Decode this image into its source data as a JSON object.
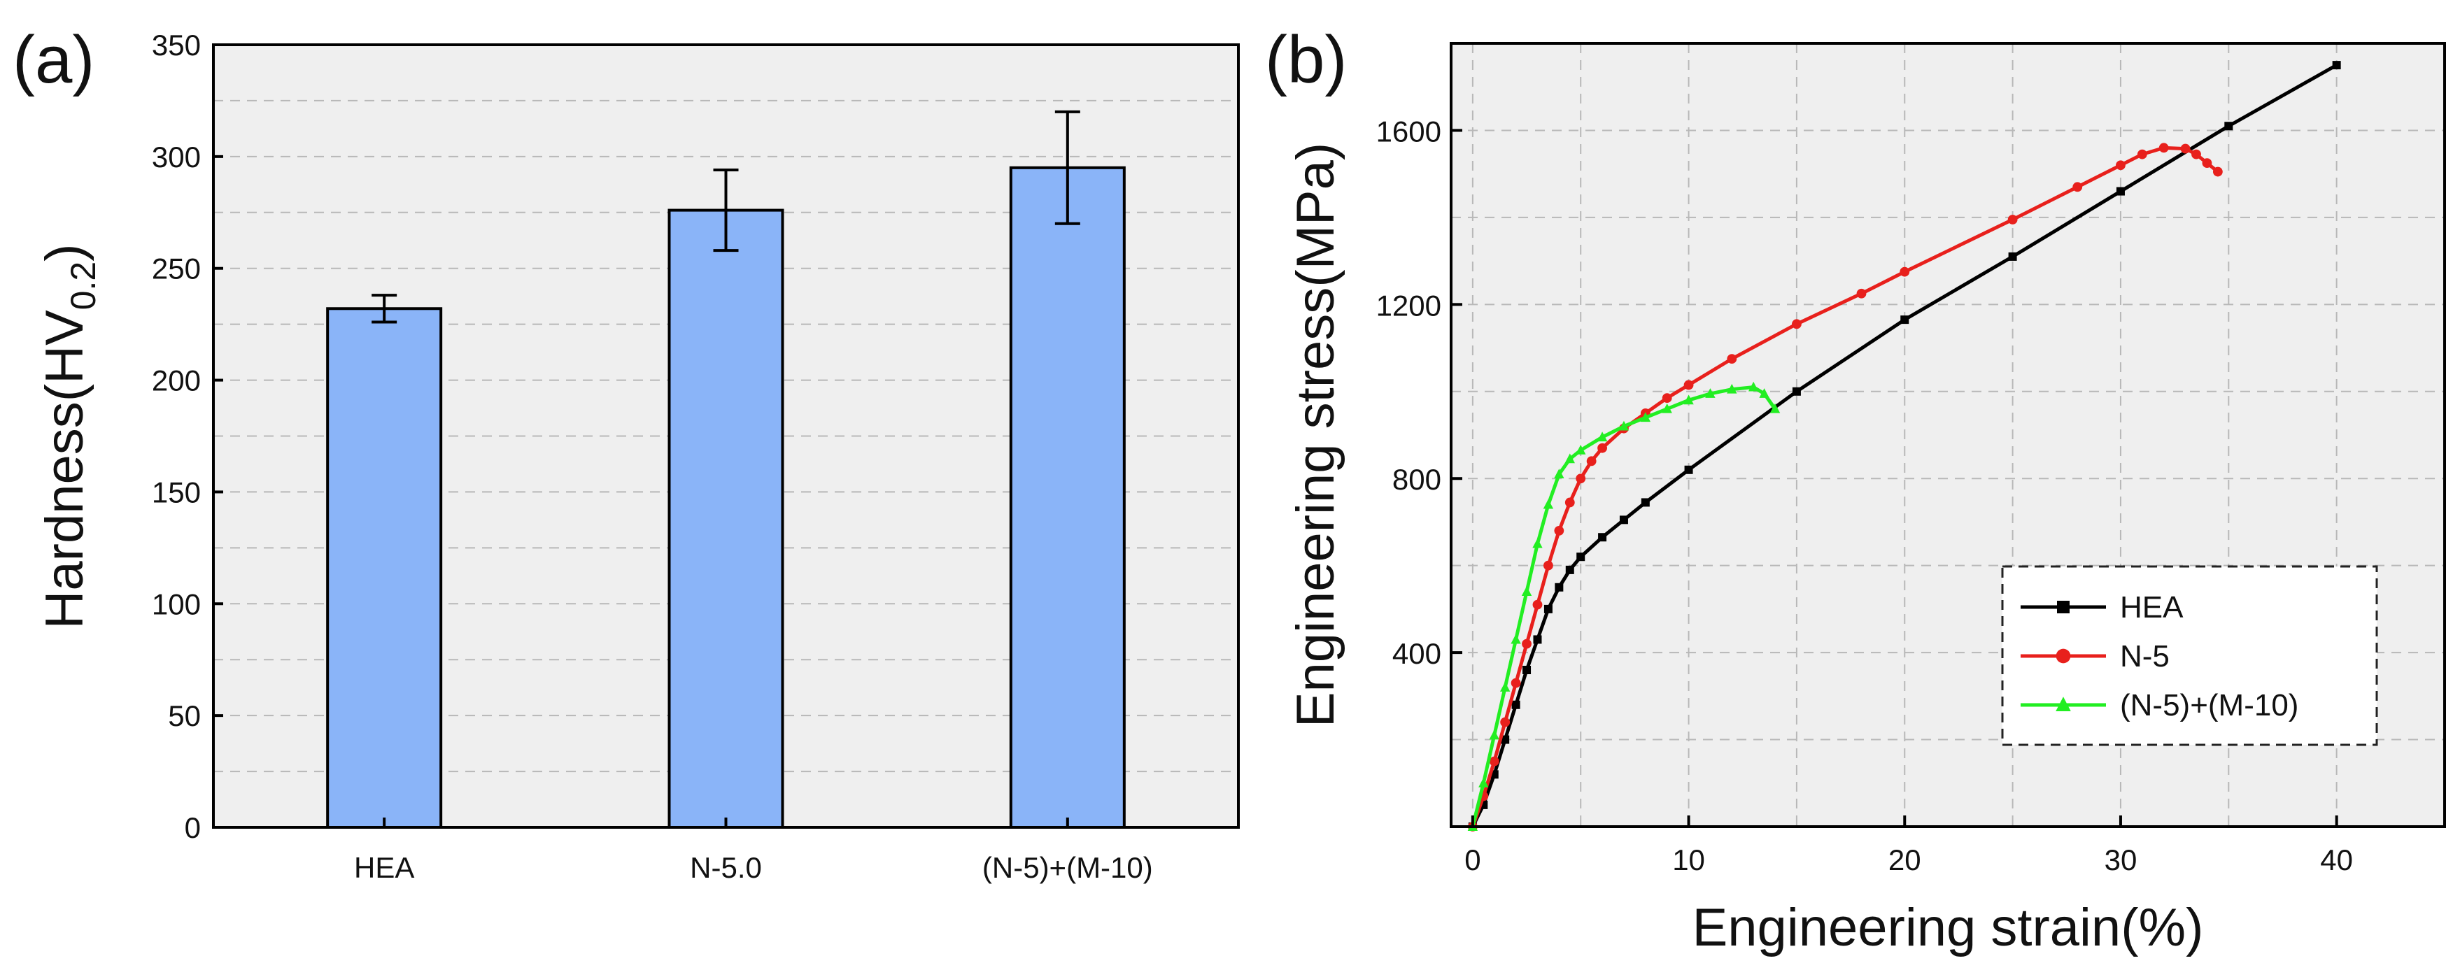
{
  "chart_data": [
    {
      "panel_label": "(a)",
      "type": "bar",
      "categories": [
        "HEA",
        "N-5.0",
        "(N-5)+(M-10)"
      ],
      "values": [
        232,
        276,
        295
      ],
      "errors": [
        6,
        18,
        25
      ],
      "ylabel_main": "Hardness(HV",
      "ylabel_sub": "0.2",
      "ylabel_close": ")",
      "ylim": [
        0,
        350
      ],
      "yticks": [
        0,
        50,
        100,
        150,
        200,
        250,
        300,
        350
      ],
      "grid_minor": [
        25,
        75,
        125,
        175,
        225,
        275,
        325
      ],
      "bar_color": "#8ab4f8"
    },
    {
      "panel_label": "(b)",
      "type": "line",
      "xlabel": "Engineering strain(%)",
      "ylabel": "Engineering stress(MPa)",
      "xlim": [
        -1,
        45
      ],
      "ylim": [
        0,
        1800
      ],
      "xticks": [
        0,
        10,
        20,
        30,
        40
      ],
      "yticks": [
        400,
        800,
        1200,
        1600
      ],
      "legend_position": "lower-right",
      "series": [
        {
          "name": "HEA",
          "color": "#000000",
          "marker": "square",
          "x": [
            0,
            0.5,
            1,
            1.5,
            2,
            2.5,
            3,
            3.5,
            4,
            4.5,
            5,
            6,
            7,
            8,
            10,
            15,
            20,
            25,
            30,
            35,
            40
          ],
          "y": [
            0,
            50,
            120,
            200,
            280,
            360,
            430,
            500,
            550,
            590,
            620,
            665,
            705,
            745,
            820,
            1000,
            1165,
            1310,
            1460,
            1610,
            1750
          ]
        },
        {
          "name": "N-5",
          "color": "#e8201c",
          "marker": "circle",
          "x": [
            0,
            0.5,
            1,
            1.5,
            2,
            2.5,
            3,
            3.5,
            4,
            4.5,
            5,
            5.5,
            6,
            7,
            8,
            9,
            10,
            12,
            15,
            18,
            20,
            25,
            28,
            30,
            31,
            32,
            33,
            33.5,
            34,
            34.5
          ],
          "y": [
            0,
            70,
            150,
            240,
            330,
            420,
            510,
            600,
            680,
            745,
            800,
            840,
            870,
            915,
            950,
            985,
            1015,
            1075,
            1155,
            1225,
            1275,
            1395,
            1470,
            1520,
            1545,
            1560,
            1558,
            1545,
            1525,
            1505
          ]
        },
        {
          "name": "(N-5)+(M-10)",
          "color": "#22ee22",
          "marker": "triangle",
          "x": [
            0,
            0.5,
            1,
            1.5,
            2,
            2.5,
            3,
            3.5,
            4,
            4.5,
            5,
            6,
            7,
            8,
            9,
            10,
            11,
            12,
            13,
            13.5,
            14
          ],
          "y": [
            0,
            100,
            210,
            320,
            430,
            540,
            650,
            740,
            810,
            845,
            865,
            895,
            920,
            940,
            960,
            980,
            995,
            1005,
            1010,
            995,
            960
          ]
        }
      ]
    }
  ]
}
